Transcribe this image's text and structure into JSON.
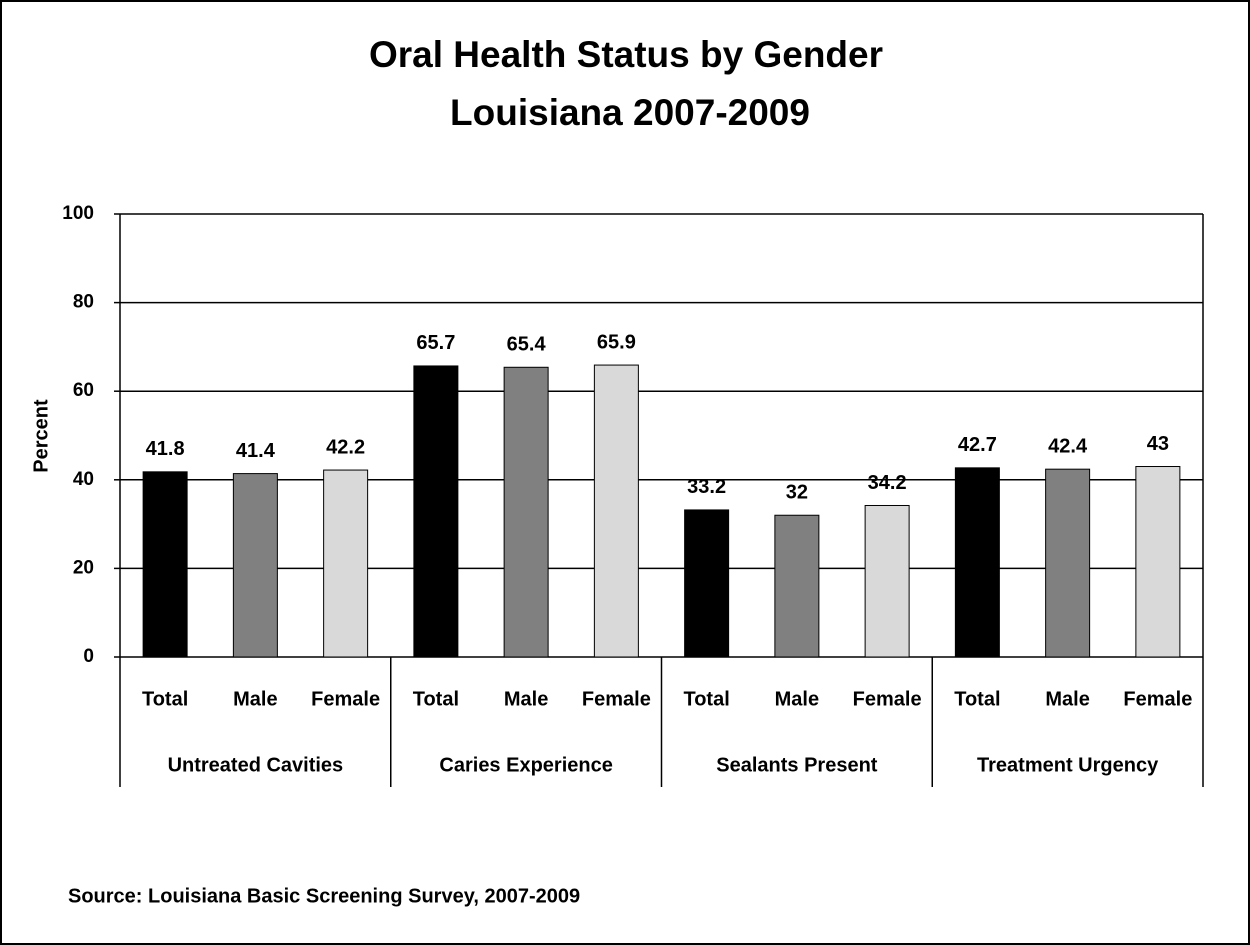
{
  "chart_data": {
    "type": "bar",
    "title": "Oral Health Status by Gender",
    "subtitle": "Louisiana 2007-2009",
    "y_label": "Percent",
    "source": "Source: Louisiana Basic Screening Survey, 2007-2009",
    "categories": [
      "Untreated Cavities",
      "Caries Experience",
      "Sealants Present",
      "Treatment Urgency"
    ],
    "series": [
      {
        "name": "Total",
        "color": "#000000",
        "values": [
          41.8,
          65.7,
          33.2,
          42.7
        ]
      },
      {
        "name": "Male",
        "color": "#808080",
        "values": [
          41.4,
          65.4,
          32,
          42.4
        ]
      },
      {
        "name": "Female",
        "color": "#d9d9d9",
        "values": [
          42.2,
          65.9,
          34.2,
          43
        ]
      }
    ],
    "ylim": [
      0,
      100
    ],
    "yticks": [
      0,
      20,
      40,
      60,
      80,
      100
    ],
    "grid": true
  }
}
